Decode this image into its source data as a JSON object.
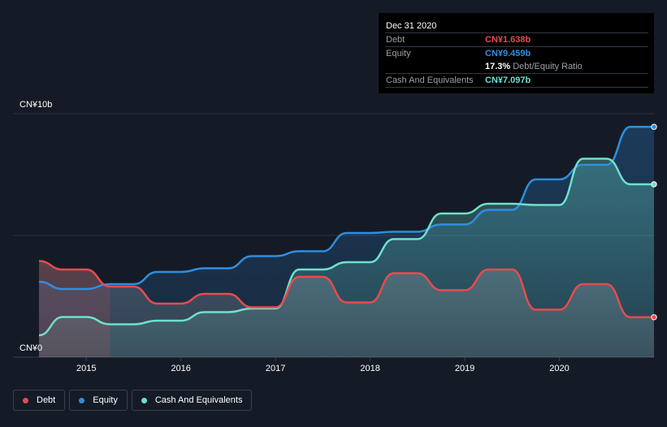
{
  "tooltip": {
    "date": "Dec 31 2020",
    "debt_label": "Debt",
    "debt_value": "CN¥1.638b",
    "equity_label": "Equity",
    "equity_value": "CN¥9.459b",
    "ratio_value": "17.3%",
    "ratio_label": "Debt/Equity Ratio",
    "cash_label": "Cash And Equivalents",
    "cash_value": "CN¥7.097b"
  },
  "legend": {
    "debt": "Debt",
    "equity": "Equity",
    "cash": "Cash And Equivalents"
  },
  "colors": {
    "debt": "#e84a4f",
    "equity": "#2f8ee0",
    "cash": "#6ee0cc",
    "background": "#151b26"
  },
  "chart_data": {
    "type": "area",
    "title": "",
    "xlabel": "",
    "ylabel": "",
    "ylim": [
      0,
      10
    ],
    "y_unit": "CN¥ billions",
    "ytick_labels": [
      "CN¥0",
      "CN¥10b"
    ],
    "xtick_labels": [
      "2015",
      "2016",
      "2017",
      "2018",
      "2019",
      "2020"
    ],
    "xticks": [
      2015,
      2016,
      2017,
      2018,
      2019,
      2020
    ],
    "xlim": [
      2014.5,
      2021.0
    ],
    "series": [
      {
        "name": "Equity",
        "points": [
          [
            2014.5,
            3.1
          ],
          [
            2014.75,
            2.8
          ],
          [
            2015.0,
            2.8
          ],
          [
            2015.25,
            3.0
          ],
          [
            2015.5,
            3.0
          ],
          [
            2015.75,
            3.5
          ],
          [
            2016.0,
            3.5
          ],
          [
            2016.25,
            3.65
          ],
          [
            2016.5,
            3.65
          ],
          [
            2016.75,
            4.15
          ],
          [
            2017.0,
            4.15
          ],
          [
            2017.25,
            4.35
          ],
          [
            2017.5,
            4.35
          ],
          [
            2017.75,
            5.1
          ],
          [
            2018.0,
            5.1
          ],
          [
            2018.25,
            5.15
          ],
          [
            2018.5,
            5.15
          ],
          [
            2018.75,
            5.45
          ],
          [
            2019.0,
            5.45
          ],
          [
            2019.25,
            6.05
          ],
          [
            2019.5,
            6.05
          ],
          [
            2019.75,
            7.3
          ],
          [
            2020.0,
            7.3
          ],
          [
            2020.25,
            7.9
          ],
          [
            2020.5,
            7.9
          ],
          [
            2020.75,
            9.46
          ],
          [
            2021.0,
            9.46
          ]
        ]
      },
      {
        "name": "Cash And Equivalents",
        "points": [
          [
            2014.5,
            0.9
          ],
          [
            2014.75,
            1.65
          ],
          [
            2015.0,
            1.65
          ],
          [
            2015.25,
            1.35
          ],
          [
            2015.5,
            1.35
          ],
          [
            2015.75,
            1.5
          ],
          [
            2016.0,
            1.5
          ],
          [
            2016.25,
            1.85
          ],
          [
            2016.5,
            1.85
          ],
          [
            2016.75,
            2.0
          ],
          [
            2017.0,
            2.0
          ],
          [
            2017.25,
            3.6
          ],
          [
            2017.5,
            3.6
          ],
          [
            2017.75,
            3.9
          ],
          [
            2018.0,
            3.9
          ],
          [
            2018.25,
            4.85
          ],
          [
            2018.5,
            4.85
          ],
          [
            2018.75,
            5.9
          ],
          [
            2019.0,
            5.9
          ],
          [
            2019.25,
            6.3
          ],
          [
            2019.5,
            6.3
          ],
          [
            2019.75,
            6.25
          ],
          [
            2020.0,
            6.25
          ],
          [
            2020.25,
            8.15
          ],
          [
            2020.5,
            8.15
          ],
          [
            2020.75,
            7.1
          ],
          [
            2021.0,
            7.1
          ]
        ]
      },
      {
        "name": "Debt",
        "points": [
          [
            2014.5,
            3.95
          ],
          [
            2014.75,
            3.6
          ],
          [
            2015.0,
            3.6
          ],
          [
            2015.25,
            2.9
          ],
          [
            2015.5,
            2.9
          ],
          [
            2015.75,
            2.2
          ],
          [
            2016.0,
            2.2
          ],
          [
            2016.25,
            2.6
          ],
          [
            2016.5,
            2.6
          ],
          [
            2016.75,
            2.05
          ],
          [
            2017.0,
            2.05
          ],
          [
            2017.25,
            3.3
          ],
          [
            2017.5,
            3.3
          ],
          [
            2017.75,
            2.25
          ],
          [
            2018.0,
            2.25
          ],
          [
            2018.25,
            3.45
          ],
          [
            2018.5,
            3.45
          ],
          [
            2018.75,
            2.75
          ],
          [
            2019.0,
            2.75
          ],
          [
            2019.25,
            3.6
          ],
          [
            2019.5,
            3.6
          ],
          [
            2019.75,
            1.95
          ],
          [
            2020.0,
            1.95
          ],
          [
            2020.25,
            3.0
          ],
          [
            2020.5,
            3.0
          ],
          [
            2020.75,
            1.64
          ],
          [
            2021.0,
            1.64
          ]
        ]
      }
    ]
  }
}
